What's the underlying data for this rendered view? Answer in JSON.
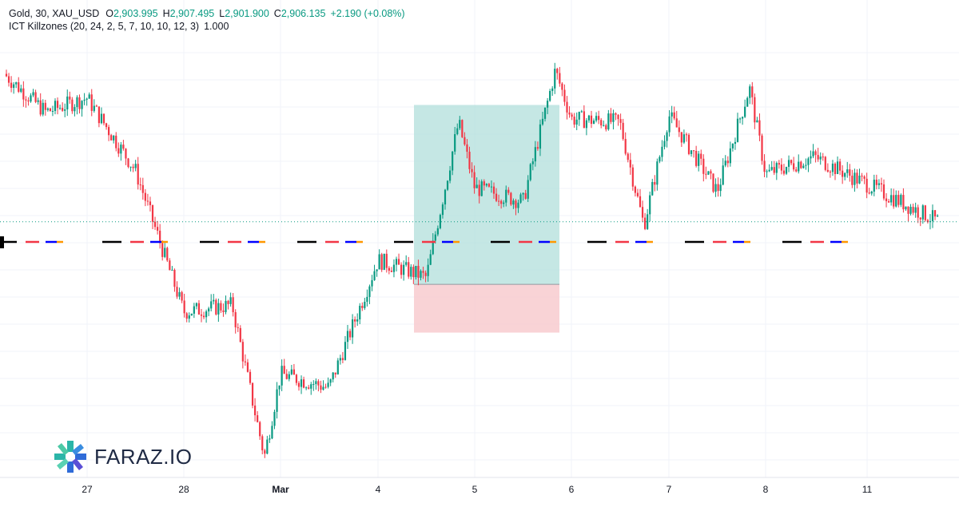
{
  "header": {
    "symbol_line": "Gold, 30, XAU_USD",
    "open_label": "O",
    "open_value": "2,903.995",
    "high_label": "H",
    "high_value": "2,907.495",
    "low_label": "L",
    "low_value": "2,901.900",
    "close_label": "C",
    "close_value": "2,906.135",
    "change": "+2.190 (+0.08%)",
    "indicator_line": "ICT Killzones (20, 24, 2, 5, 7, 10, 10, 12, 3)",
    "indicator_value": "1.000"
  },
  "logo": {
    "text": "FARAZ.IO"
  },
  "colors": {
    "up": "#089981",
    "down": "#f23645",
    "tp_zone": "#b2dfdb",
    "sl_zone": "#f8c8cc",
    "asia": "#000000",
    "london": "#f23645",
    "ny": "#0000ff",
    "close": "#ff9800",
    "last_price_line": "#089981"
  },
  "chart_data": {
    "type": "candlestick",
    "symbol": "XAU_USD",
    "timeframe": "30",
    "x_tick_labels": [
      "27",
      "28",
      "Mar",
      "4",
      "5",
      "6",
      "7",
      "8",
      "11"
    ],
    "y_range_estimate": [
      2832,
      2957
    ],
    "last_price": 2906.135,
    "path_anchors": [
      {
        "x": "Feb 26",
        "close": 2949
      },
      {
        "x": "Feb 26 12:00",
        "close": 2938
      },
      {
        "x": "Feb 27 00:00",
        "close": 2942
      },
      {
        "x": "Feb 27 12:00",
        "close": 2921
      },
      {
        "x": "Feb 28 00:00",
        "close": 2880
      },
      {
        "x": "Feb 28 12:00",
        "close": 2882
      },
      {
        "x": "Feb 28 20:00",
        "close": 2838
      },
      {
        "x": "Mar 3 00:00",
        "close": 2862
      },
      {
        "x": "Mar 3 12:00",
        "close": 2858
      },
      {
        "x": "Mar 4 00:00",
        "close": 2895
      },
      {
        "x": "Mar 4 12:00",
        "close": 2890
      },
      {
        "x": "Mar 4 20:00",
        "close": 2935
      },
      {
        "x": "Mar 5 00:00",
        "close": 2916
      },
      {
        "x": "Mar 5 12:00",
        "close": 2912
      },
      {
        "x": "Mar 5 20:00",
        "close": 2950
      },
      {
        "x": "Mar 6 00:00",
        "close": 2936
      },
      {
        "x": "Mar 6 12:00",
        "close": 2935
      },
      {
        "x": "Mar 6 18:00",
        "close": 2905
      },
      {
        "x": "Mar 7 00:00",
        "close": 2937
      },
      {
        "x": "Mar 7 12:00",
        "close": 2915
      },
      {
        "x": "Mar 7 20:00",
        "close": 2945
      },
      {
        "x": "Mar 8 00:00",
        "close": 2920
      },
      {
        "x": "Mar 8 12:00",
        "close": 2925
      },
      {
        "x": "Mar 10 18:00",
        "close": 2906
      }
    ],
    "position_tool": {
      "type": "long",
      "entry": 2888,
      "target": 2940,
      "stop": 2874
    },
    "killzones": [
      "Asia",
      "London",
      "New York",
      "London Close"
    ]
  }
}
